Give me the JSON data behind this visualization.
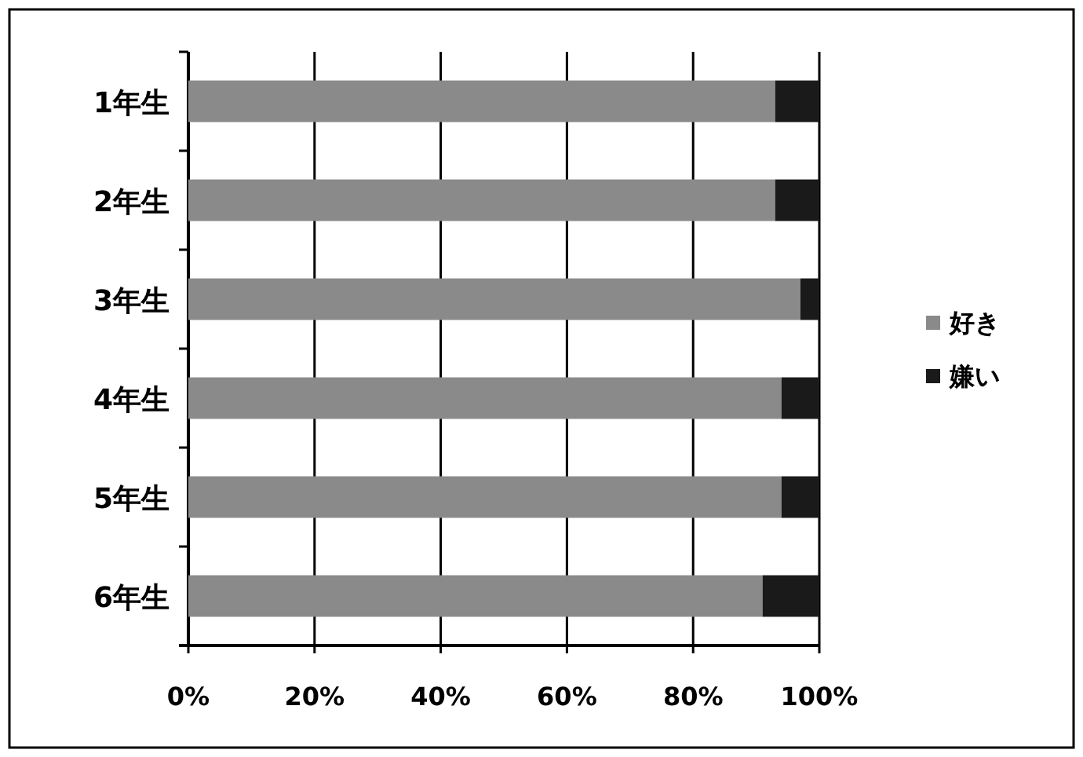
{
  "chart_data": {
    "type": "bar",
    "orientation": "horizontal",
    "stacked": true,
    "categories": [
      "1年生",
      "2年生",
      "3年生",
      "4年生",
      "5年生",
      "6年生"
    ],
    "series": [
      {
        "name": "好き",
        "color": "#8a8a8a",
        "values": [
          93,
          93,
          97,
          94,
          94,
          91
        ]
      },
      {
        "name": "嫌い",
        "color": "#1a1a1a",
        "values": [
          7,
          7,
          3,
          6,
          6,
          9
        ]
      }
    ],
    "xlim": [
      0,
      100
    ],
    "xticks": [
      {
        "value": 0,
        "label": "0%"
      },
      {
        "value": 20,
        "label": "20%"
      },
      {
        "value": 40,
        "label": "40%"
      },
      {
        "value": 60,
        "label": "60%"
      },
      {
        "value": 80,
        "label": "80%"
      },
      {
        "value": 100,
        "label": "100%"
      }
    ],
    "grid": "x",
    "legend": "right"
  }
}
